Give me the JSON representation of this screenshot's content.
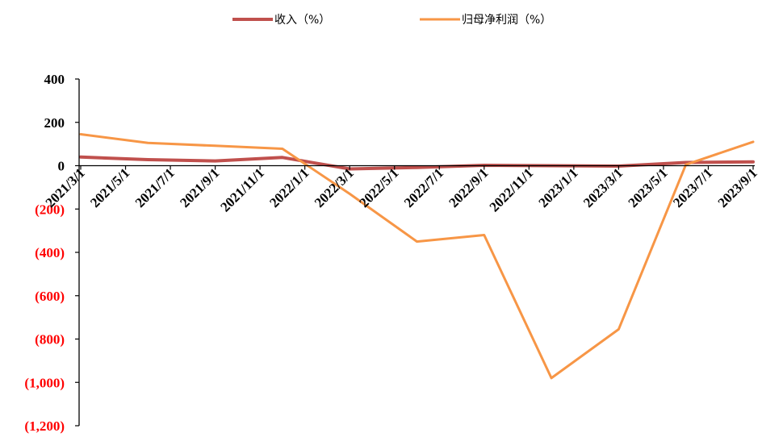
{
  "chart_data": {
    "type": "line",
    "title": "",
    "xlabel": "",
    "ylabel": "",
    "categories": [
      "2021/3/1",
      "2021/5/1",
      "2021/7/1",
      "2021/9/1",
      "2021/11/1",
      "2022/1/1",
      "2022/3/1",
      "2022/5/1",
      "2022/7/1",
      "2022/9/1",
      "2022/11/1",
      "2023/1/1",
      "2023/3/1",
      "2023/5/1",
      "2023/7/1",
      "2023/9/1"
    ],
    "ylim": [
      -1200,
      400
    ],
    "yticks": [
      400,
      200,
      0,
      -200,
      -400,
      -600,
      -800,
      -1000,
      -1200
    ],
    "ytick_labels": [
      "400",
      "200",
      "0",
      "(200)",
      "(400)",
      "(600)",
      "(800)",
      "(1,000)",
      "(1,200)"
    ],
    "negative_tick_color": "#ff0000",
    "positive_tick_color": "#000000",
    "legend_position": "top-center",
    "grid": false,
    "series": [
      {
        "name": "收入（%）",
        "color": "#c0504d",
        "x": [
          "2021/3/1",
          "2021/6/1",
          "2021/9/1",
          "2021/12/1",
          "2022/3/1",
          "2022/6/1",
          "2022/9/1",
          "2022/12/1",
          "2023/3/1",
          "2023/6/1",
          "2023/9/1"
        ],
        "values": [
          40,
          28,
          22,
          38,
          -15,
          -8,
          2,
          0,
          -2,
          15,
          18
        ]
      },
      {
        "name": "归母净利润（%）",
        "color": "#f79646",
        "x": [
          "2021/3/1",
          "2021/6/1",
          "2021/9/1",
          "2021/12/1",
          "2022/3/1",
          "2022/6/1",
          "2022/9/1",
          "2022/12/1",
          "2023/3/1",
          "2023/6/1",
          "2023/9/1"
        ],
        "values": [
          145,
          105,
          92,
          78,
          -130,
          -350,
          -320,
          -980,
          -755,
          5,
          110
        ]
      }
    ]
  }
}
